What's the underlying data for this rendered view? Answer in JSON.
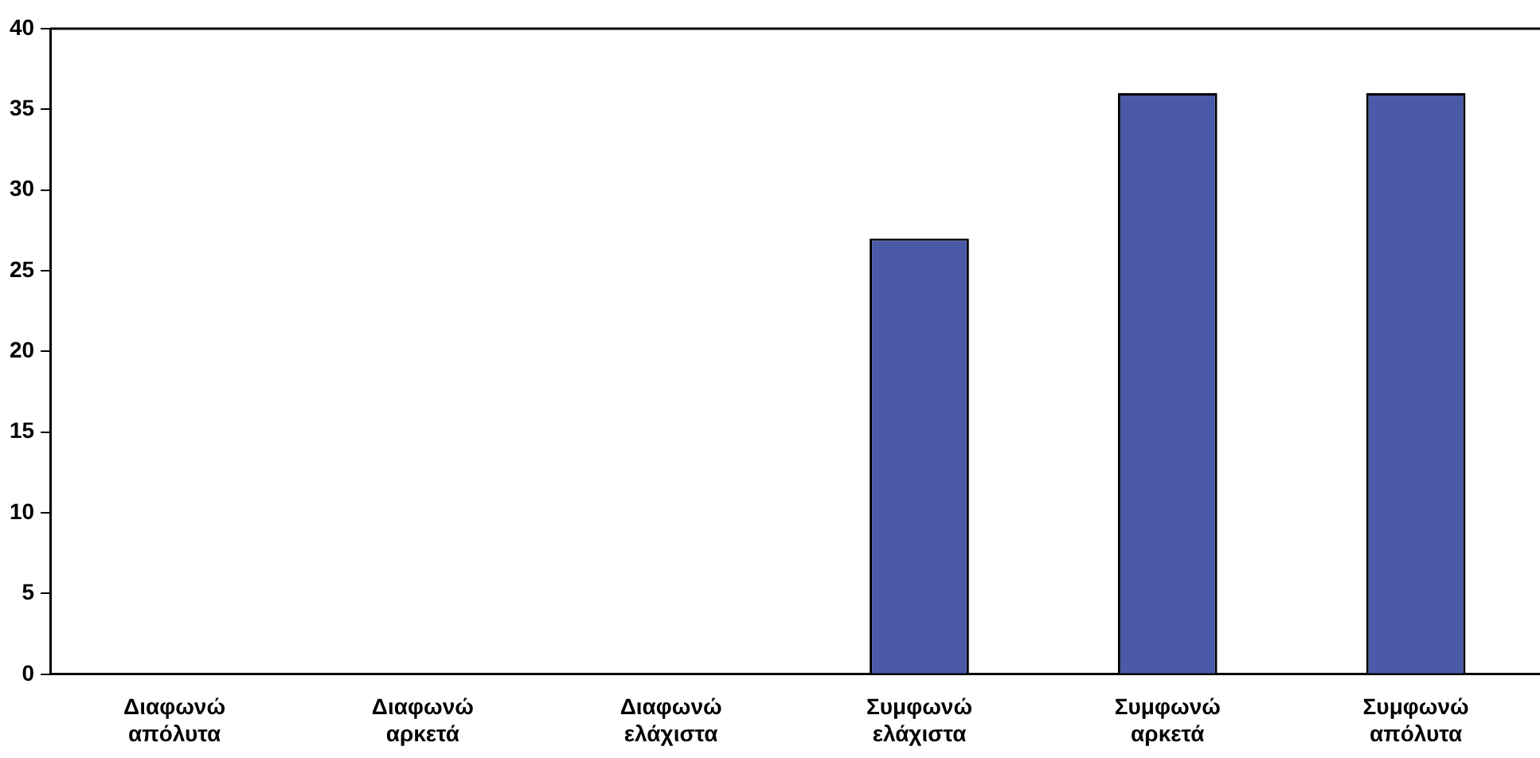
{
  "chart_data": {
    "type": "bar",
    "categories": [
      "Διαφωνώ απόλυτα",
      "Διαφωνώ αρκετά",
      "Διαφωνώ ελάχιστα",
      "Συμφωνώ ελάχιστα",
      "Συμφωνώ αρκετά",
      "Συμφωνώ απόλυτα"
    ],
    "values": [
      0,
      0,
      0,
      27,
      36,
      36
    ],
    "color": "#4b5aa8",
    "ylim": [
      0,
      40
    ],
    "yticks": [
      0,
      5,
      10,
      15,
      20,
      25,
      30,
      35,
      40
    ],
    "grid": false,
    "legend": false
  }
}
